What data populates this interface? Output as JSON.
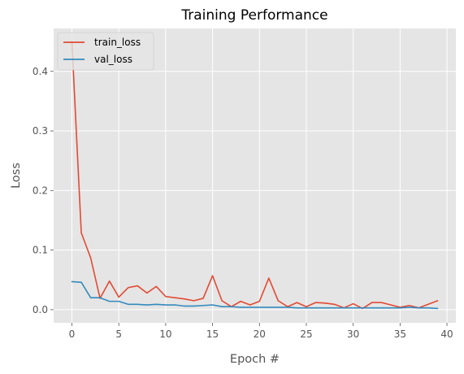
{
  "chart_data": {
    "type": "line",
    "title": "Training Performance",
    "xlabel": "Epoch #",
    "ylabel": "Loss",
    "xlim": [
      -1.95,
      40.95
    ],
    "ylim": [
      -0.022,
      0.472
    ],
    "xticks": [
      0,
      5,
      10,
      15,
      20,
      25,
      30,
      35,
      40
    ],
    "yticks": [
      0.0,
      0.1,
      0.2,
      0.3,
      0.4
    ],
    "ytick_labels": [
      "0.0",
      "0.1",
      "0.2",
      "0.3",
      "0.4"
    ],
    "grid": true,
    "legend_position": "top-left",
    "background": "#e5e5e5",
    "x": [
      0,
      1,
      2,
      3,
      4,
      5,
      6,
      7,
      8,
      9,
      10,
      11,
      12,
      13,
      14,
      15,
      16,
      17,
      18,
      19,
      20,
      21,
      22,
      23,
      24,
      25,
      26,
      27,
      28,
      29,
      30,
      31,
      32,
      33,
      34,
      35,
      36,
      37,
      38,
      39
    ],
    "series": [
      {
        "name": "train_loss",
        "color": "#e24a33",
        "values": [
          0.45,
          0.129,
          0.087,
          0.019,
          0.048,
          0.021,
          0.037,
          0.04,
          0.028,
          0.039,
          0.022,
          0.02,
          0.018,
          0.015,
          0.019,
          0.057,
          0.015,
          0.005,
          0.014,
          0.008,
          0.014,
          0.053,
          0.015,
          0.005,
          0.012,
          0.005,
          0.012,
          0.011,
          0.009,
          0.003,
          0.01,
          0.002,
          0.012,
          0.012,
          0.008,
          0.004,
          0.007,
          0.003,
          0.009,
          0.015
        ]
      },
      {
        "name": "val_loss",
        "color": "#348abd",
        "values": [
          0.047,
          0.046,
          0.02,
          0.02,
          0.014,
          0.014,
          0.009,
          0.009,
          0.008,
          0.009,
          0.008,
          0.008,
          0.006,
          0.006,
          0.007,
          0.008,
          0.005,
          0.005,
          0.004,
          0.004,
          0.004,
          0.004,
          0.004,
          0.004,
          0.003,
          0.003,
          0.003,
          0.003,
          0.003,
          0.003,
          0.003,
          0.003,
          0.003,
          0.003,
          0.003,
          0.003,
          0.004,
          0.003,
          0.003,
          0.002
        ]
      }
    ]
  }
}
